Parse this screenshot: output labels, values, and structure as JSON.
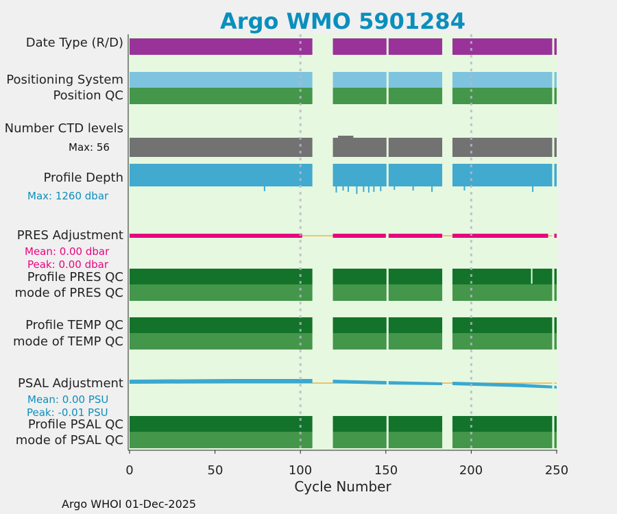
{
  "chart_data": {
    "type": "status-timeline",
    "title": "Argo WMO 5901284",
    "xlabel": "Cycle Number",
    "xlim": [
      0,
      250
    ],
    "xticks": [
      0,
      50,
      100,
      150,
      200,
      250
    ],
    "vertical_markers": [
      100,
      200
    ],
    "data_gaps": [
      [
        107,
        119
      ],
      [
        183,
        189
      ]
    ],
    "thin_gaps": [
      151,
      248
    ],
    "rows": [
      {
        "label": "Date Type (R/D)",
        "color": "#993399"
      },
      {
        "label": "Positioning System",
        "color": "#7ec4de"
      },
      {
        "label": "Position QC",
        "color": "#44964a"
      },
      {
        "label": "Number CTD levels",
        "color": "#727272"
      },
      {
        "label": "Profile Depth",
        "color": "#42a9cf"
      },
      {
        "label": "PRES Adjustment",
        "color": "#e8047f",
        "reference_color": "#f0b040"
      },
      {
        "label": "Profile PRES QC",
        "color": "#13732a"
      },
      {
        "label": "mode of PRES QC",
        "color": "#44964a"
      },
      {
        "label": "Profile TEMP QC",
        "color": "#13732a"
      },
      {
        "label": "mode of TEMP QC",
        "color": "#44964a"
      },
      {
        "label": "PSAL Adjustment",
        "color": "#3aa8cf",
        "reference_color": "#f0b040"
      },
      {
        "label": "Profile PSAL QC",
        "color": "#13732a"
      },
      {
        "label": "mode of PSAL QC",
        "color": "#44964a"
      }
    ],
    "annotations": {
      "ctd_max": "Max: 56",
      "depth_max": "Max: 1260 dbar",
      "pres_mean": "Mean: 0.00 dbar",
      "pres_peak": "Peak: 0.00 dbar",
      "psal_mean": "Mean: 0.00 PSU",
      "psal_peak": "Peak: -0.01 PSU"
    },
    "annotation_colors": {
      "ctd": "#111111",
      "depth": "#0a8fbd",
      "pres": "#e8047f",
      "psal": "#0a8fbd"
    }
  },
  "footer": "Argo WHOI 01-Dec-2025"
}
